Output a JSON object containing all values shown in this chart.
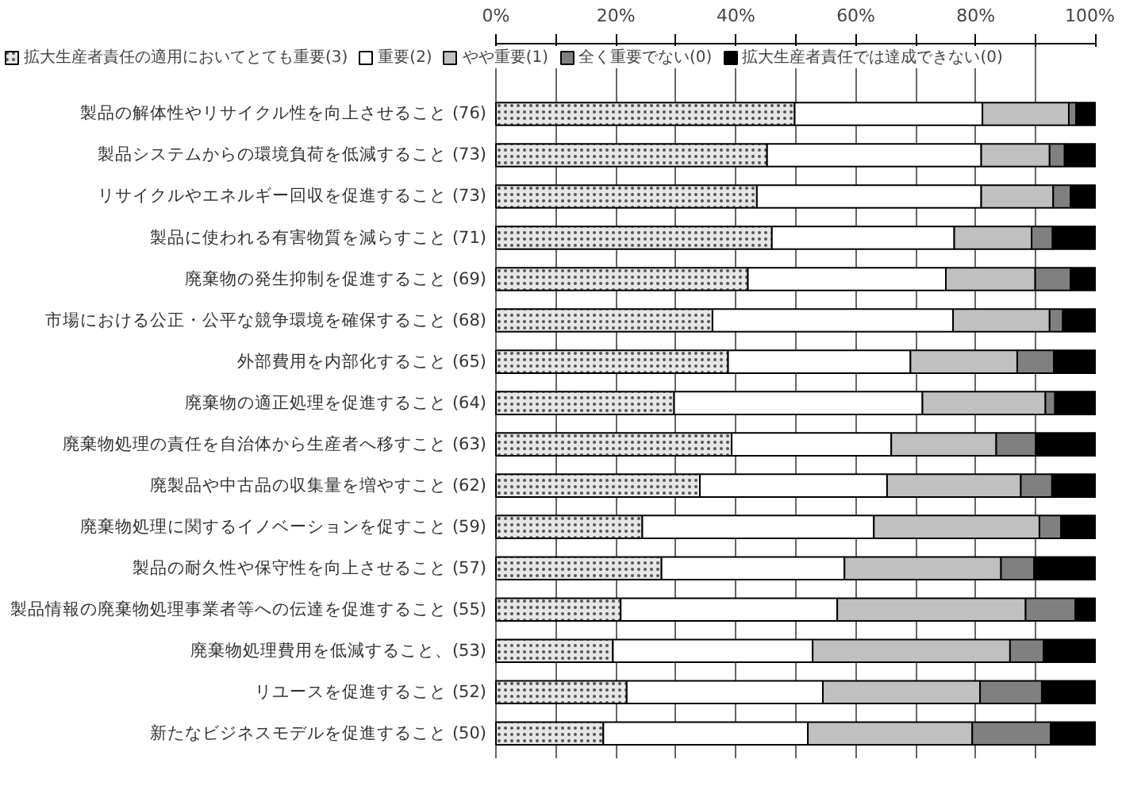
{
  "chart_data": {
    "type": "bar",
    "orientation": "horizontal",
    "stacked": true,
    "categories": [
      "製品の解体性やリサイクル性を向上させること (76)",
      "製品システムからの環境負荷を低減すること (73)",
      "リサイクルやエネルギー回収を促進すること (73)",
      "製品に使われる有害物質を減らすこと (71)",
      "廃棄物の発生抑制を促進すること (69)",
      "市場における公正・公平な競争環境を確保すること (68)",
      "外部費用を内部化すること (65)",
      "廃棄物の適正処理を促進すること (64)",
      "廃棄物処理の責任を自治体から生産者へ移すこと (63)",
      "廃製品や中古品の収集量を増やすこと (62)",
      "廃棄物処理に関するイノベーションを促すこと (59)",
      "製品の耐久性や保守性を向上させること (57)",
      "製品情報の廃棄物処理事業者等への伝達を促進すること (55)",
      "廃棄物処理費用を低減すること、(53)",
      "リユースを促進すること (52)",
      "新たなビジネスモデルを促進すること (50)"
    ],
    "series": [
      {
        "name": "拡大生産者責任の適用においてとても重要(3)",
        "color": "#e6e6e6",
        "values": [
          49.8,
          45.2,
          43.5,
          46.0,
          42.0,
          36.1,
          38.7,
          29.7,
          39.3,
          34.0,
          24.4,
          27.6,
          20.8,
          19.5,
          21.8,
          17.9
        ]
      },
      {
        "name": "重要(2)",
        "color": "#ffffff",
        "values": [
          31.3,
          35.7,
          37.4,
          30.4,
          33.0,
          40.1,
          30.4,
          41.4,
          26.6,
          31.2,
          38.6,
          30.5,
          36.1,
          33.3,
          32.7,
          34.1
        ]
      },
      {
        "name": "やや重要(1)",
        "color": "#c0c0c0",
        "values": [
          14.4,
          11.4,
          12.0,
          12.9,
          14.9,
          16.1,
          17.8,
          20.5,
          17.5,
          22.3,
          27.6,
          26.1,
          31.4,
          32.9,
          26.2,
          27.4
        ]
      },
      {
        "name": "全く重要でない(0)",
        "color": "#808080",
        "values": [
          1.2,
          2.5,
          2.9,
          3.5,
          5.9,
          2.2,
          6.1,
          1.6,
          6.6,
          5.2,
          3.6,
          5.5,
          8.3,
          5.6,
          10.3,
          13.1
        ]
      },
      {
        "name": "拡大生産者責任では達成できない(0)",
        "color": "#000000",
        "values": [
          3.3,
          5.2,
          4.2,
          7.2,
          4.2,
          5.5,
          7.0,
          6.8,
          10.0,
          7.3,
          5.8,
          10.3,
          3.4,
          8.7,
          9.0,
          7.5
        ]
      }
    ],
    "xlim": [
      0,
      100
    ],
    "xticks": [
      {
        "value": 0,
        "label": "0%"
      },
      {
        "value": 10,
        "label": null
      },
      {
        "value": 20,
        "label": "20%"
      },
      {
        "value": 30,
        "label": null
      },
      {
        "value": 40,
        "label": "40%"
      },
      {
        "value": 50,
        "label": null
      },
      {
        "value": 60,
        "label": "60%"
      },
      {
        "value": 70,
        "label": null
      },
      {
        "value": 80,
        "label": "80%"
      },
      {
        "value": 90,
        "label": null
      },
      {
        "value": 100,
        "label": "100%"
      }
    ],
    "grid": "x",
    "legend": "top"
  }
}
